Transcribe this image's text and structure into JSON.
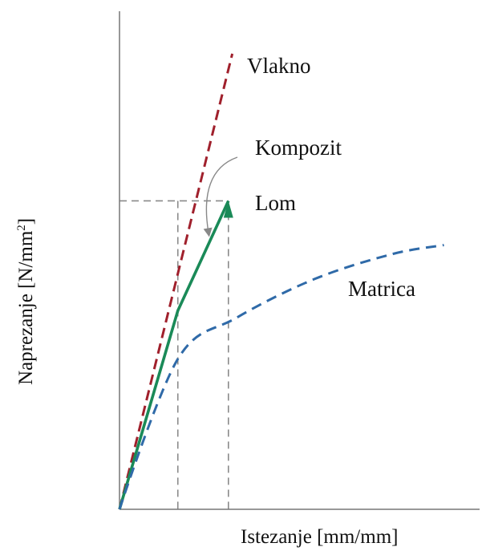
{
  "chart_data": {
    "type": "line",
    "xlabel": "Istezanje [mm/mm]",
    "ylabel": "Naprezanje [N/mm",
    "ylabel_superscript": "2",
    "ylabel_suffix": "]",
    "grid": false,
    "colors": {
      "fiber": "#a0202c",
      "composite": "#1a8a58",
      "matrix": "#2f6aa8",
      "guide": "#8a8a8a",
      "axis": "#777777",
      "annotation": "#888888"
    },
    "series": [
      {
        "name": "Vlakno",
        "style": "dashed",
        "x": [
          0,
          1.45
        ],
        "y": [
          0,
          1.0
        ]
      },
      {
        "name": "Kompozit",
        "style": "solid",
        "x": [
          0,
          0.75,
          1.4
        ],
        "y": [
          0,
          0.436,
          0.677
        ]
      },
      {
        "name": "Matrica",
        "style": "dashed",
        "x": [
          0,
          0.75,
          1.5,
          2.5,
          3.5,
          4.17
        ],
        "y": [
          0,
          0.33,
          0.42,
          0.505,
          0.56,
          0.58
        ]
      }
    ],
    "annotations": [
      {
        "text": "Lom"
      }
    ],
    "reference_lines": {
      "break_stress": 0.677,
      "strain_marks": [
        0.75,
        1.4
      ]
    },
    "xlim": [
      0,
      4.5
    ],
    "ylim": [
      0,
      1.05
    ]
  }
}
